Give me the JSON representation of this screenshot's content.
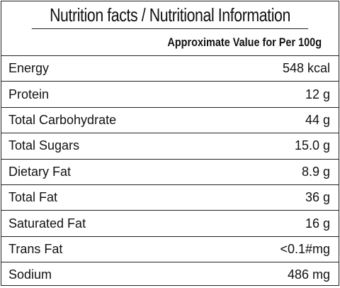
{
  "header": {
    "title": "Nutrition facts / Nutritional Information",
    "subtitle": "Approximate Value for Per 100g"
  },
  "table": {
    "rows": [
      [
        "Energy",
        "548 kcal"
      ],
      [
        "Protein",
        "12 g"
      ],
      [
        "Total Carbohydrate",
        "44 g"
      ],
      [
        "Total Sugars",
        "15.0 g"
      ],
      [
        "Dietary Fat",
        "8.9 g"
      ],
      [
        "Total Fat",
        "36 g"
      ],
      [
        "Saturated Fat",
        "16 g"
      ],
      [
        "Trans Fat",
        "<0.1#mg"
      ],
      [
        "Sodium",
        "486 mg"
      ]
    ]
  }
}
